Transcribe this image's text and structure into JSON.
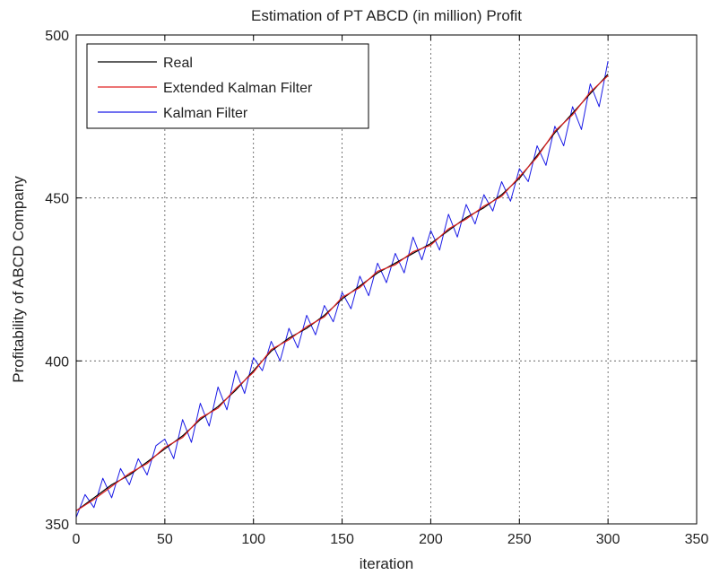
{
  "chart_data": {
    "type": "line",
    "title": "Estimation of PT ABCD (in million) Profit",
    "xlabel": "iteration",
    "ylabel": "Profitability of ABCD Company",
    "xlim": [
      0,
      350
    ],
    "ylim": [
      350,
      500
    ],
    "xticks": [
      "0",
      "50",
      "100",
      "150",
      "200",
      "250",
      "300",
      "350"
    ],
    "yticks": [
      "350",
      "400",
      "450",
      "500"
    ],
    "grid": true,
    "legend_position": "top-left",
    "series": [
      {
        "name": "Real",
        "color": "#000000",
        "x": [
          0,
          10,
          20,
          30,
          40,
          50,
          60,
          70,
          80,
          90,
          100,
          110,
          120,
          130,
          140,
          150,
          160,
          170,
          180,
          190,
          200,
          210,
          220,
          230,
          240,
          250,
          260,
          270,
          280,
          290,
          300
        ],
        "values": [
          354,
          358,
          362,
          365,
          369,
          373,
          377,
          382,
          386,
          391,
          397,
          403,
          407,
          410,
          414,
          419,
          423,
          427,
          430,
          433,
          436,
          440,
          444,
          447,
          451,
          456,
          463,
          470,
          476,
          482,
          488
        ]
      },
      {
        "name": "Extended Kalman Filter",
        "color": "#e02020",
        "x": [
          0,
          10,
          20,
          30,
          40,
          50,
          60,
          70,
          80,
          90,
          100,
          110,
          120,
          130,
          140,
          150,
          160,
          170,
          180,
          190,
          200,
          210,
          220,
          230,
          240,
          250,
          260,
          270,
          280,
          290,
          300
        ],
        "values": [
          354,
          357.5,
          361.5,
          365.5,
          368.5,
          373.5,
          376.5,
          382.5,
          385.5,
          391.5,
          396.5,
          403.5,
          406.5,
          410.5,
          413.5,
          419.5,
          422.5,
          427.5,
          429.5,
          433.5,
          435.5,
          440.5,
          443.5,
          447.5,
          450.5,
          456.5,
          462.5,
          470.5,
          475.5,
          482.5,
          487.5
        ]
      },
      {
        "name": "Kalman Filter",
        "color": "#1a1ae6",
        "x": [
          0,
          5,
          10,
          15,
          20,
          25,
          30,
          35,
          40,
          45,
          50,
          55,
          60,
          65,
          70,
          75,
          80,
          85,
          90,
          95,
          100,
          105,
          110,
          115,
          120,
          125,
          130,
          135,
          140,
          145,
          150,
          155,
          160,
          165,
          170,
          175,
          180,
          185,
          190,
          195,
          200,
          205,
          210,
          215,
          220,
          225,
          230,
          235,
          240,
          245,
          250,
          255,
          260,
          265,
          270,
          275,
          280,
          285,
          290,
          295,
          300
        ],
        "values": [
          352,
          359,
          355,
          364,
          358,
          367,
          362,
          370,
          365,
          374,
          376,
          370,
          382,
          375,
          387,
          380,
          392,
          385,
          397,
          390,
          401,
          397,
          406,
          400,
          410,
          404,
          414,
          408,
          417,
          412,
          421,
          416,
          426,
          420,
          430,
          424,
          433,
          427,
          438,
          431,
          440,
          434,
          445,
          438,
          448,
          442,
          451,
          446,
          455,
          449,
          459,
          455,
          466,
          460,
          472,
          466,
          478,
          471,
          485,
          478,
          492
        ]
      }
    ]
  }
}
